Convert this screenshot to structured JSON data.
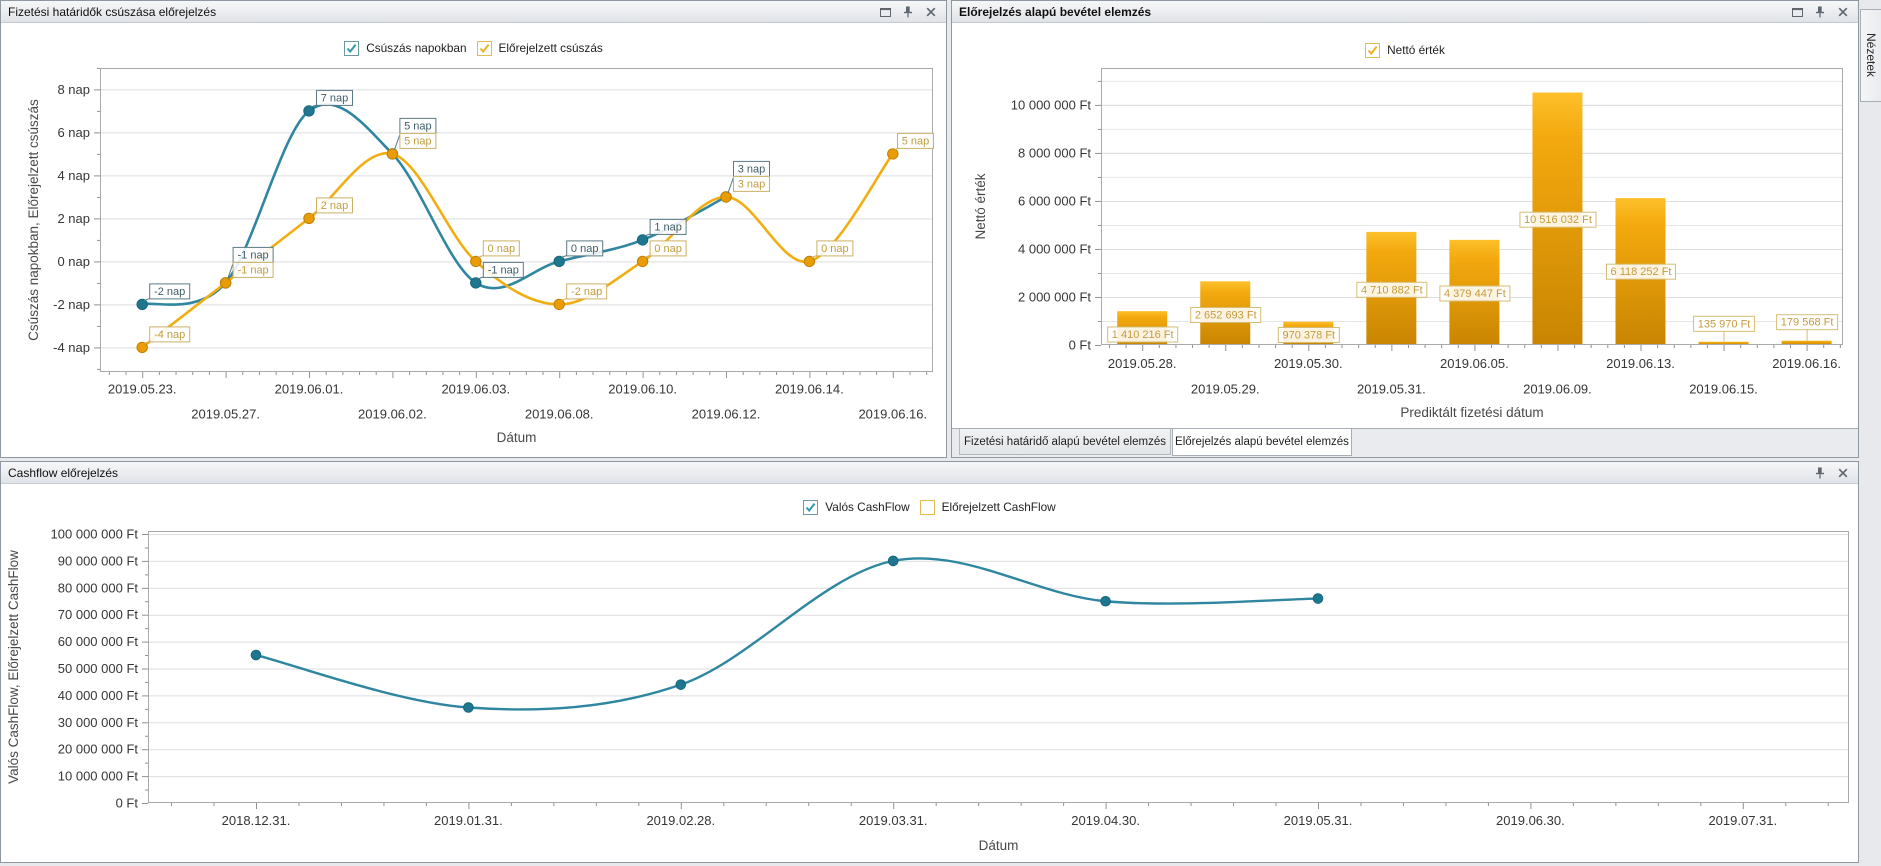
{
  "panels": {
    "slippage": {
      "title": "Fizetési határidők csúszása előrejelzés",
      "window_buttons": [
        "maximize",
        "pin",
        "close"
      ]
    },
    "revenue": {
      "title": "Előrejelzés alapú bevétel elemzés",
      "window_buttons": [
        "maximize",
        "pin",
        "close"
      ],
      "tabs": [
        {
          "label": "Fizetési határidő alapú bevétel elemzés",
          "active": false
        },
        {
          "label": "Előrejelzés alapú bevétel elemzés",
          "active": true
        }
      ]
    },
    "cashflow": {
      "title": "Cashflow előrejelzés",
      "window_buttons": [
        "pin",
        "close"
      ]
    }
  },
  "views_strip": {
    "tab_label": "Nézetek"
  },
  "colors": {
    "teal_line": "#2f86a0",
    "teal_marker": "#1f778f",
    "teal_label": "#3c5d68",
    "orange_line": "#f0ae12",
    "orange_marker": "#e99c05",
    "orange_label": "#c19d41",
    "bar_top": "#fdc02a",
    "bar_mid": "#f3a90e",
    "bar_bottom": "#c98502",
    "bar_label": "#c49b3d",
    "bar_label_border": "#d6bd72"
  },
  "chart_data": [
    {
      "type": "line",
      "panel": "slippage",
      "title": "Fizetési határidők csúszása előrejelzés",
      "xlabel": "Dátum",
      "ylabel": "Csúszás napokban, Előrejelzett csúszás",
      "categories": [
        "2019.05.23.",
        "2019.05.27.",
        "2019.06.01.",
        "2019.06.02.",
        "2019.06.03.",
        "2019.06.08.",
        "2019.06.10.",
        "2019.06.12.",
        "2019.06.14.",
        "2019.06.16."
      ],
      "series": [
        {
          "name": "Csúszás napokban",
          "color_key": "teal",
          "checked": true,
          "values": [
            -2,
            -1,
            7,
            5,
            -1,
            0,
            1,
            3,
            null,
            null
          ]
        },
        {
          "name": "Előrejelzett csúszás",
          "color_key": "orange",
          "checked": true,
          "values": [
            -4,
            -1,
            2,
            5,
            0,
            -2,
            0,
            3,
            0,
            5
          ]
        }
      ],
      "point_label_suffix": " nap",
      "y_tick_labels": [
        "8 nap",
        "6 nap",
        "4 nap",
        "2 nap",
        "0 nap",
        "-2 nap",
        "-4 nap"
      ],
      "y_tick_values": [
        8,
        6,
        4,
        2,
        0,
        -2,
        -4
      ],
      "ylim": [
        -5.2,
        9.0
      ],
      "legend_position": "top-center",
      "grid": "horizontal-major"
    },
    {
      "type": "bar",
      "panel": "revenue",
      "title": "Előrejelzés alapú bevétel elemzés",
      "xlabel": "Prediktált fizetési dátum",
      "ylabel": "Nettó érték",
      "categories": [
        "2019.05.28.",
        "2019.05.29.",
        "2019.05.30.",
        "2019.05.31.",
        "2019.06.05.",
        "2019.06.09.",
        "2019.06.13.",
        "2019.06.15.",
        "2019.06.16."
      ],
      "series": [
        {
          "name": "Nettó érték",
          "color_key": "orange",
          "checked": true,
          "values": [
            1410216,
            2652693,
            970378,
            4710882,
            4379447,
            10516032,
            6118252,
            135970,
            179568
          ],
          "value_labels": [
            "1 410 216 Ft",
            "2 652 693 Ft",
            "970 378 Ft",
            "4 710 882 Ft",
            "4 379 447 Ft",
            "10 516 032 Ft",
            "6 118 252 Ft",
            "135 970 Ft",
            "179 568 Ft"
          ]
        }
      ],
      "y_tick_labels": [
        "0 Ft",
        "2 000 000 Ft",
        "4 000 000 Ft",
        "6 000 000 Ft",
        "8 000 000 Ft",
        "10 000 000 Ft"
      ],
      "y_tick_values": [
        0,
        2000000,
        4000000,
        6000000,
        8000000,
        10000000
      ],
      "ylim": [
        0,
        11530000
      ],
      "legend_position": "top-center",
      "grid": "horizontal-minor"
    },
    {
      "type": "line",
      "panel": "cashflow",
      "title": "Cashflow előrejelzés",
      "xlabel": "Dátum",
      "ylabel": "Valós CashFlow, Előrejelzett CashFlow",
      "categories": [
        "2018.12.31.",
        "2019.01.31.",
        "2019.02.28.",
        "2019.03.31.",
        "2019.04.30.",
        "2019.05.31.",
        "2019.06.30.",
        "2019.07.31."
      ],
      "series": [
        {
          "name": "Valós CashFlow",
          "color_key": "teal",
          "checked": true,
          "values": [
            55000000,
            35500000,
            44000000,
            90000000,
            75000000,
            76000000,
            null,
            null
          ]
        },
        {
          "name": "Előrejelzett CashFlow",
          "color_key": "orange",
          "checked": false,
          "values": [
            null,
            null,
            null,
            null,
            null,
            null,
            null,
            null
          ]
        }
      ],
      "y_tick_labels": [
        "0 Ft",
        "10 000 000 Ft",
        "20 000 000 Ft",
        "30 000 000 Ft",
        "40 000 000 Ft",
        "50 000 000 Ft",
        "60 000 000 Ft",
        "70 000 000 Ft",
        "80 000 000 Ft",
        "90 000 000 Ft",
        "100 000 000 Ft"
      ],
      "y_tick_values": [
        0,
        10000000,
        20000000,
        30000000,
        40000000,
        50000000,
        60000000,
        70000000,
        80000000,
        90000000,
        100000000
      ],
      "ylim": [
        0,
        101100000
      ],
      "legend_position": "top-center",
      "grid": "horizontal-major"
    }
  ]
}
